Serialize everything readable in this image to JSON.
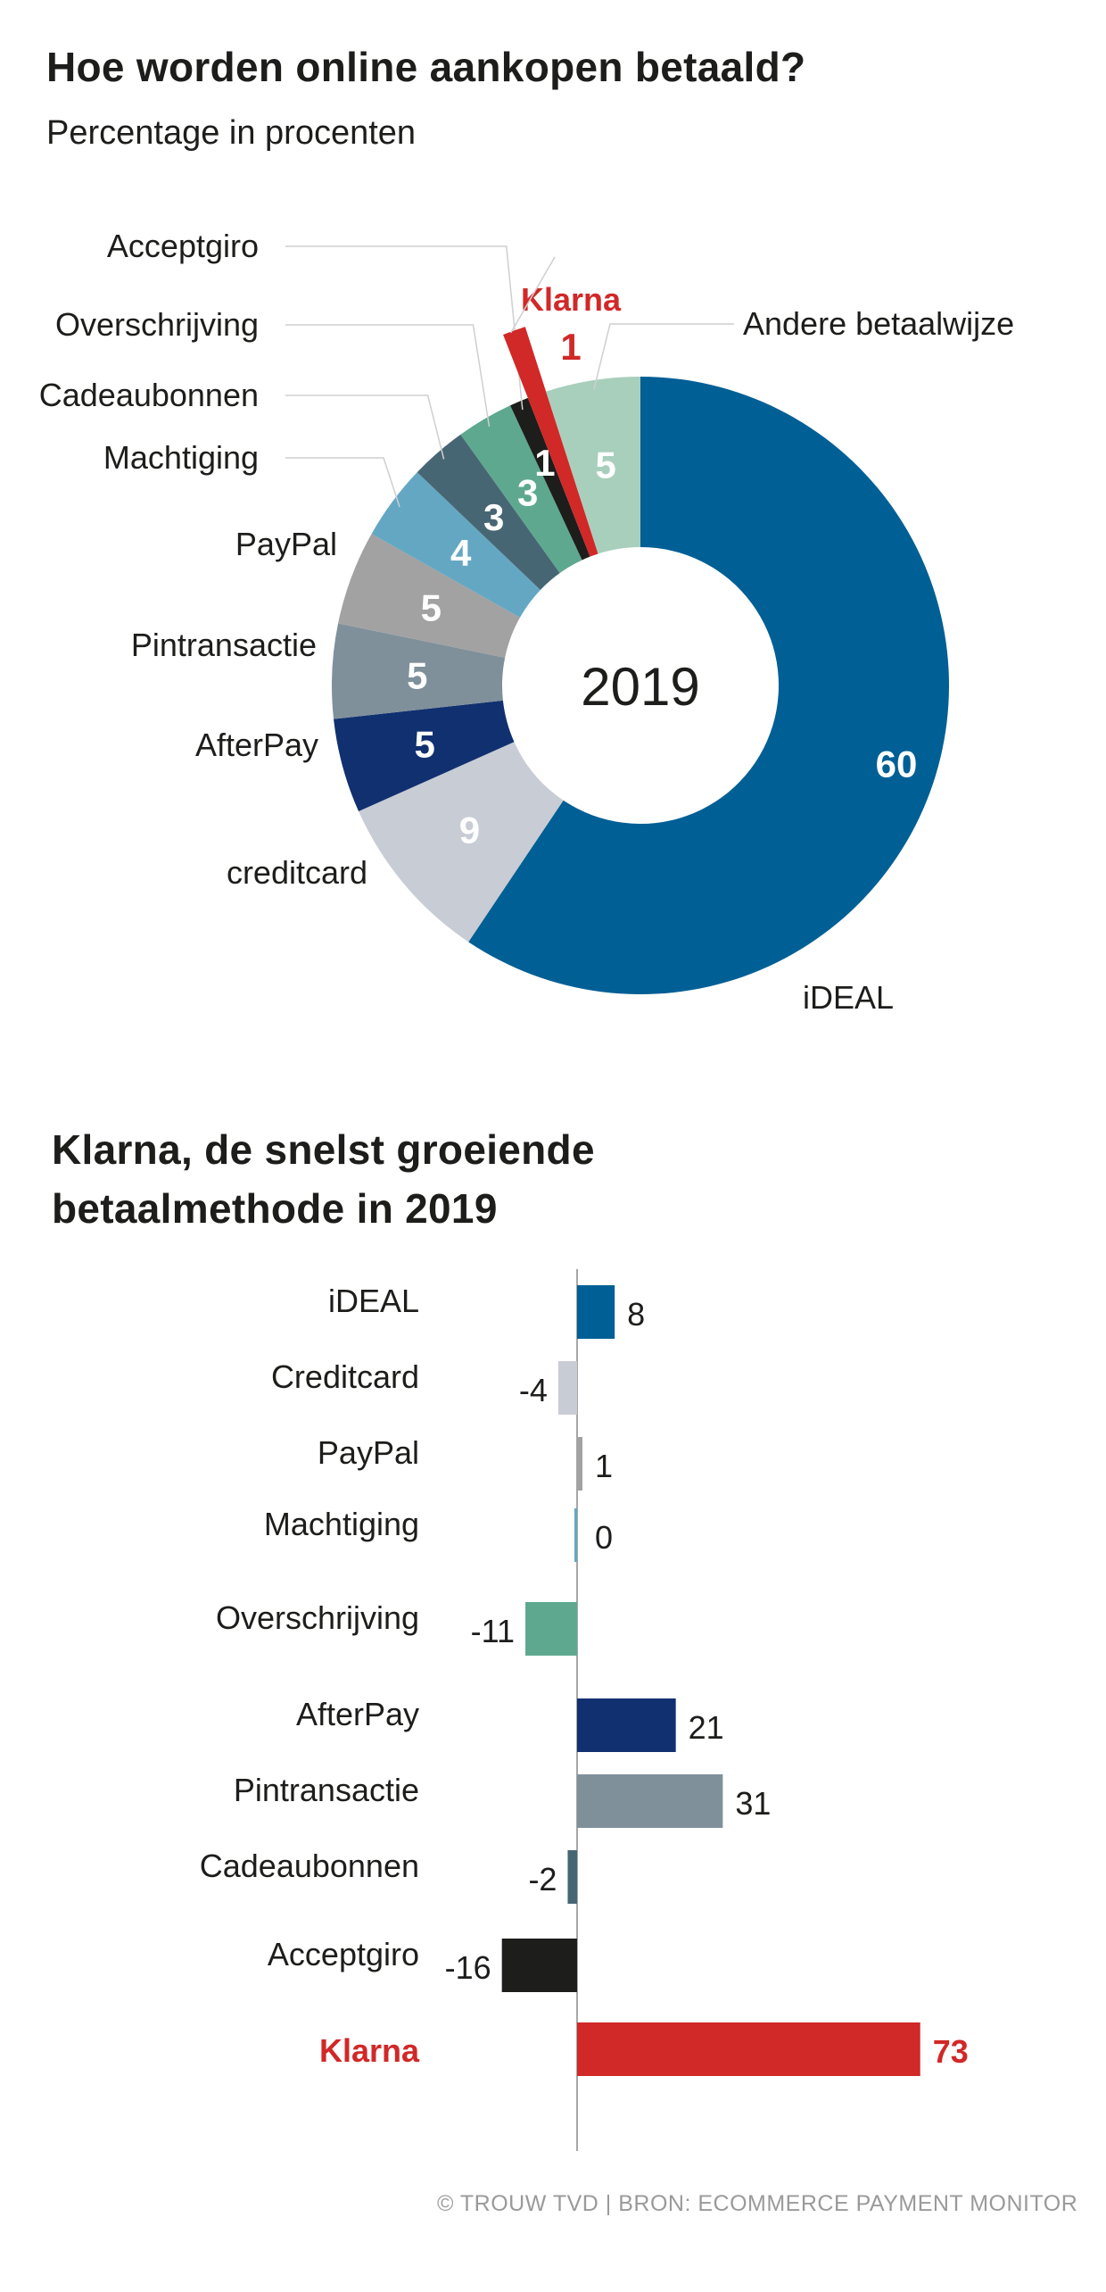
{
  "chart_data": [
    {
      "type": "pie",
      "title": "Hoe worden online aankopen betaald?",
      "subtitle": "Percentage in procenten",
      "center_label": "2019",
      "unit": "%",
      "slices": [
        {
          "label": "iDEAL",
          "value": 60,
          "color": "#005f95"
        },
        {
          "label": "creditcard",
          "value": 9,
          "color": "#c8ccd4"
        },
        {
          "label": "AfterPay",
          "value": 5,
          "color": "#113070"
        },
        {
          "label": "Pintransactie",
          "value": 5,
          "color": "#7f909b"
        },
        {
          "label": "PayPal",
          "value": 5,
          "color": "#a2a2a2"
        },
        {
          "label": "Machtiging",
          "value": 4,
          "color": "#64a7c3"
        },
        {
          "label": "Cadeaubonnen",
          "value": 3,
          "color": "#476673"
        },
        {
          "label": "Overschrijving",
          "value": 3,
          "color": "#5ea890"
        },
        {
          "label": "Acceptgiro",
          "value": 1,
          "color": "#1d1d1b"
        },
        {
          "label": "Klarna",
          "value": 1,
          "color": "#d12828",
          "highlight": true
        },
        {
          "label": "Andere betaalwijze",
          "value": 5,
          "color": "#a8cfbc"
        }
      ]
    },
    {
      "type": "bar",
      "orientation": "horizontal",
      "title": "Klarna, de snelst groeiende betaalmethode in 2019",
      "categories": [
        "iDEAL",
        "Creditcard",
        "PayPal",
        "Machtiging",
        "Overschrijving",
        "AfterPay",
        "Pintransactie",
        "Cadeaubonnen",
        "Acceptgiro",
        "Klarna"
      ],
      "values": [
        8,
        -4,
        1,
        0,
        -11,
        21,
        31,
        -2,
        -16,
        73
      ],
      "colors": [
        "#005f95",
        "#c8ccd4",
        "#a2a2a2",
        "#64a7c3",
        "#5ea890",
        "#113070",
        "#7f909b",
        "#476673",
        "#1d1d1b",
        "#d12828"
      ],
      "highlight": "Klarna",
      "xlabel": "",
      "ylabel": "",
      "xlim": [
        -16,
        73
      ],
      "grid": false
    }
  ],
  "header": {
    "title": "Hoe worden online aankopen betaald?",
    "subtitle": "Percentage in procenten"
  },
  "section2": {
    "title_line1": "Klarna, de snelst groeiende",
    "title_line2": "betaalmethode in 2019"
  },
  "footer": {
    "credit": "© TROUW TVD | BRON: ECOMMERCE PAYMENT MONITOR"
  },
  "colors": {
    "text": "#1d1d1b",
    "highlight": "#d12828",
    "credit": "#9a9a9a"
  }
}
